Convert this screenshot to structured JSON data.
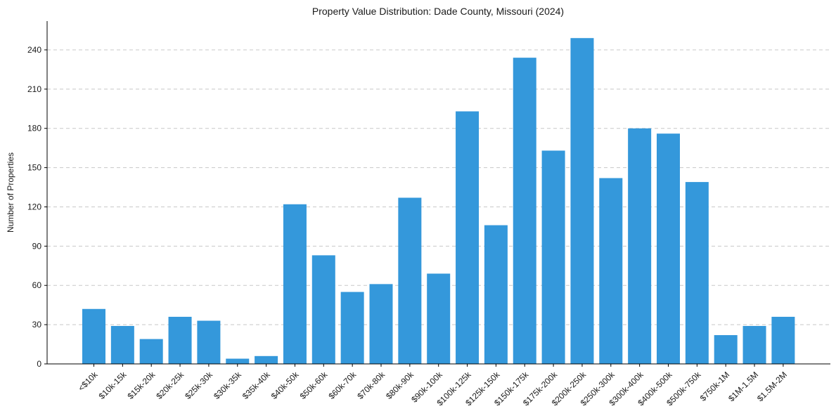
{
  "chart_data": {
    "type": "bar",
    "title": "Property Value Distribution: Dade County, Missouri (2024)",
    "xlabel": "",
    "ylabel": "Number of Properties",
    "ylim": [
      0,
      262
    ],
    "yticks": [
      0,
      30,
      60,
      90,
      120,
      150,
      180,
      210,
      240
    ],
    "grid": "y-dashed",
    "legend": "none",
    "bar_color": "#3498db",
    "categories": [
      "<$10k",
      "$10k-15k",
      "$15k-20k",
      "$20k-25k",
      "$25k-30k",
      "$30k-35k",
      "$35k-40k",
      "$40k-50k",
      "$50k-60k",
      "$60k-70k",
      "$70k-80k",
      "$80k-90k",
      "$90k-100k",
      "$100k-125k",
      "$125k-150k",
      "$150k-175k",
      "$175k-200k",
      "$200k-250k",
      "$250k-300k",
      "$300k-400k",
      "$400k-500k",
      "$500k-750k",
      "$750k-1M",
      "$1M-1.5M",
      "$1.5M-2M"
    ],
    "values": [
      42,
      29,
      19,
      36,
      33,
      4,
      6,
      122,
      83,
      55,
      61,
      127,
      69,
      193,
      106,
      234,
      163,
      249,
      142,
      180,
      176,
      139,
      22,
      29,
      36
    ]
  }
}
